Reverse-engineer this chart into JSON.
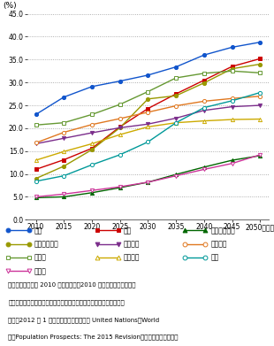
{
  "years": [
    2010,
    2015,
    2020,
    2025,
    2030,
    2035,
    2040,
    2045,
    2050
  ],
  "series": {
    "日本": {
      "values": [
        23.0,
        26.8,
        29.1,
        30.3,
        31.6,
        33.4,
        36.0,
        37.7,
        38.8
      ],
      "color": "#1155cc",
      "marker": "o",
      "filled": true
    },
    "韓国": {
      "values": [
        11.0,
        13.1,
        15.6,
        20.3,
        24.3,
        27.5,
        30.5,
        33.5,
        35.2
      ],
      "color": "#cc0000",
      "marker": "s",
      "filled": true
    },
    "インドネシア": {
      "values": [
        4.8,
        5.0,
        5.9,
        7.0,
        8.2,
        9.9,
        11.5,
        13.0,
        14.0
      ],
      "color": "#006600",
      "marker": "^",
      "filled": true
    },
    "シンガポール": {
      "values": [
        9.0,
        11.7,
        15.3,
        20.1,
        26.4,
        27.1,
        29.9,
        33.0,
        34.0
      ],
      "color": "#999900",
      "marker": "o",
      "filled": true
    },
    "イギリス": {
      "values": [
        16.6,
        17.8,
        19.0,
        20.1,
        20.9,
        22.2,
        23.9,
        24.7,
        25.0
      ],
      "color": "#7b2d8b",
      "marker": "v",
      "filled": true
    },
    "フランス": {
      "values": [
        16.8,
        19.1,
        20.8,
        22.1,
        23.5,
        24.9,
        25.9,
        26.5,
        27.0
      ],
      "color": "#e07820",
      "marker": "o",
      "filled": false
    },
    "ドイツ": {
      "values": [
        20.7,
        21.2,
        23.0,
        25.2,
        28.0,
        31.0,
        32.0,
        32.5,
        32.1
      ],
      "color": "#669933",
      "marker": "s",
      "filled": false
    },
    "アメリカ": {
      "values": [
        13.0,
        14.9,
        16.6,
        18.6,
        20.3,
        21.2,
        21.6,
        21.9,
        22.0
      ],
      "color": "#ccaa00",
      "marker": "^",
      "filled": false
    },
    "中国": {
      "values": [
        8.4,
        9.6,
        12.0,
        14.2,
        17.0,
        21.2,
        24.5,
        26.0,
        27.8
      ],
      "color": "#009999",
      "marker": "o",
      "filled": false
    },
    "インド": {
      "values": [
        5.0,
        5.6,
        6.4,
        7.2,
        8.2,
        9.6,
        11.0,
        12.3,
        14.2
      ],
      "color": "#cc3399",
      "marker": "v",
      "filled": false
    }
  },
  "legend_order": [
    "日本",
    "韓国",
    "インドネシア",
    "シンガポール",
    "イギリス",
    "フランス",
    "ドイツ",
    "アメリカ",
    "中国",
    "インド"
  ],
  "ylim": [
    0.0,
    45.0
  ],
  "ytick_labels": [
    "0.0",
    "5.0",
    "10.0",
    "15.0",
    "20.0",
    "25.0",
    "30.0",
    "35.0",
    "40.0",
    "45.0"
  ],
  "ytick_vals": [
    0.0,
    5.0,
    10.0,
    15.0,
    20.0,
    25.0,
    30.0,
    35.0,
    40.0,
    45.0
  ],
  "ylabel": "(%)",
  "bg_color": "#ffffff",
  "grid_color": "#999999",
  "grid_style": ":"
}
